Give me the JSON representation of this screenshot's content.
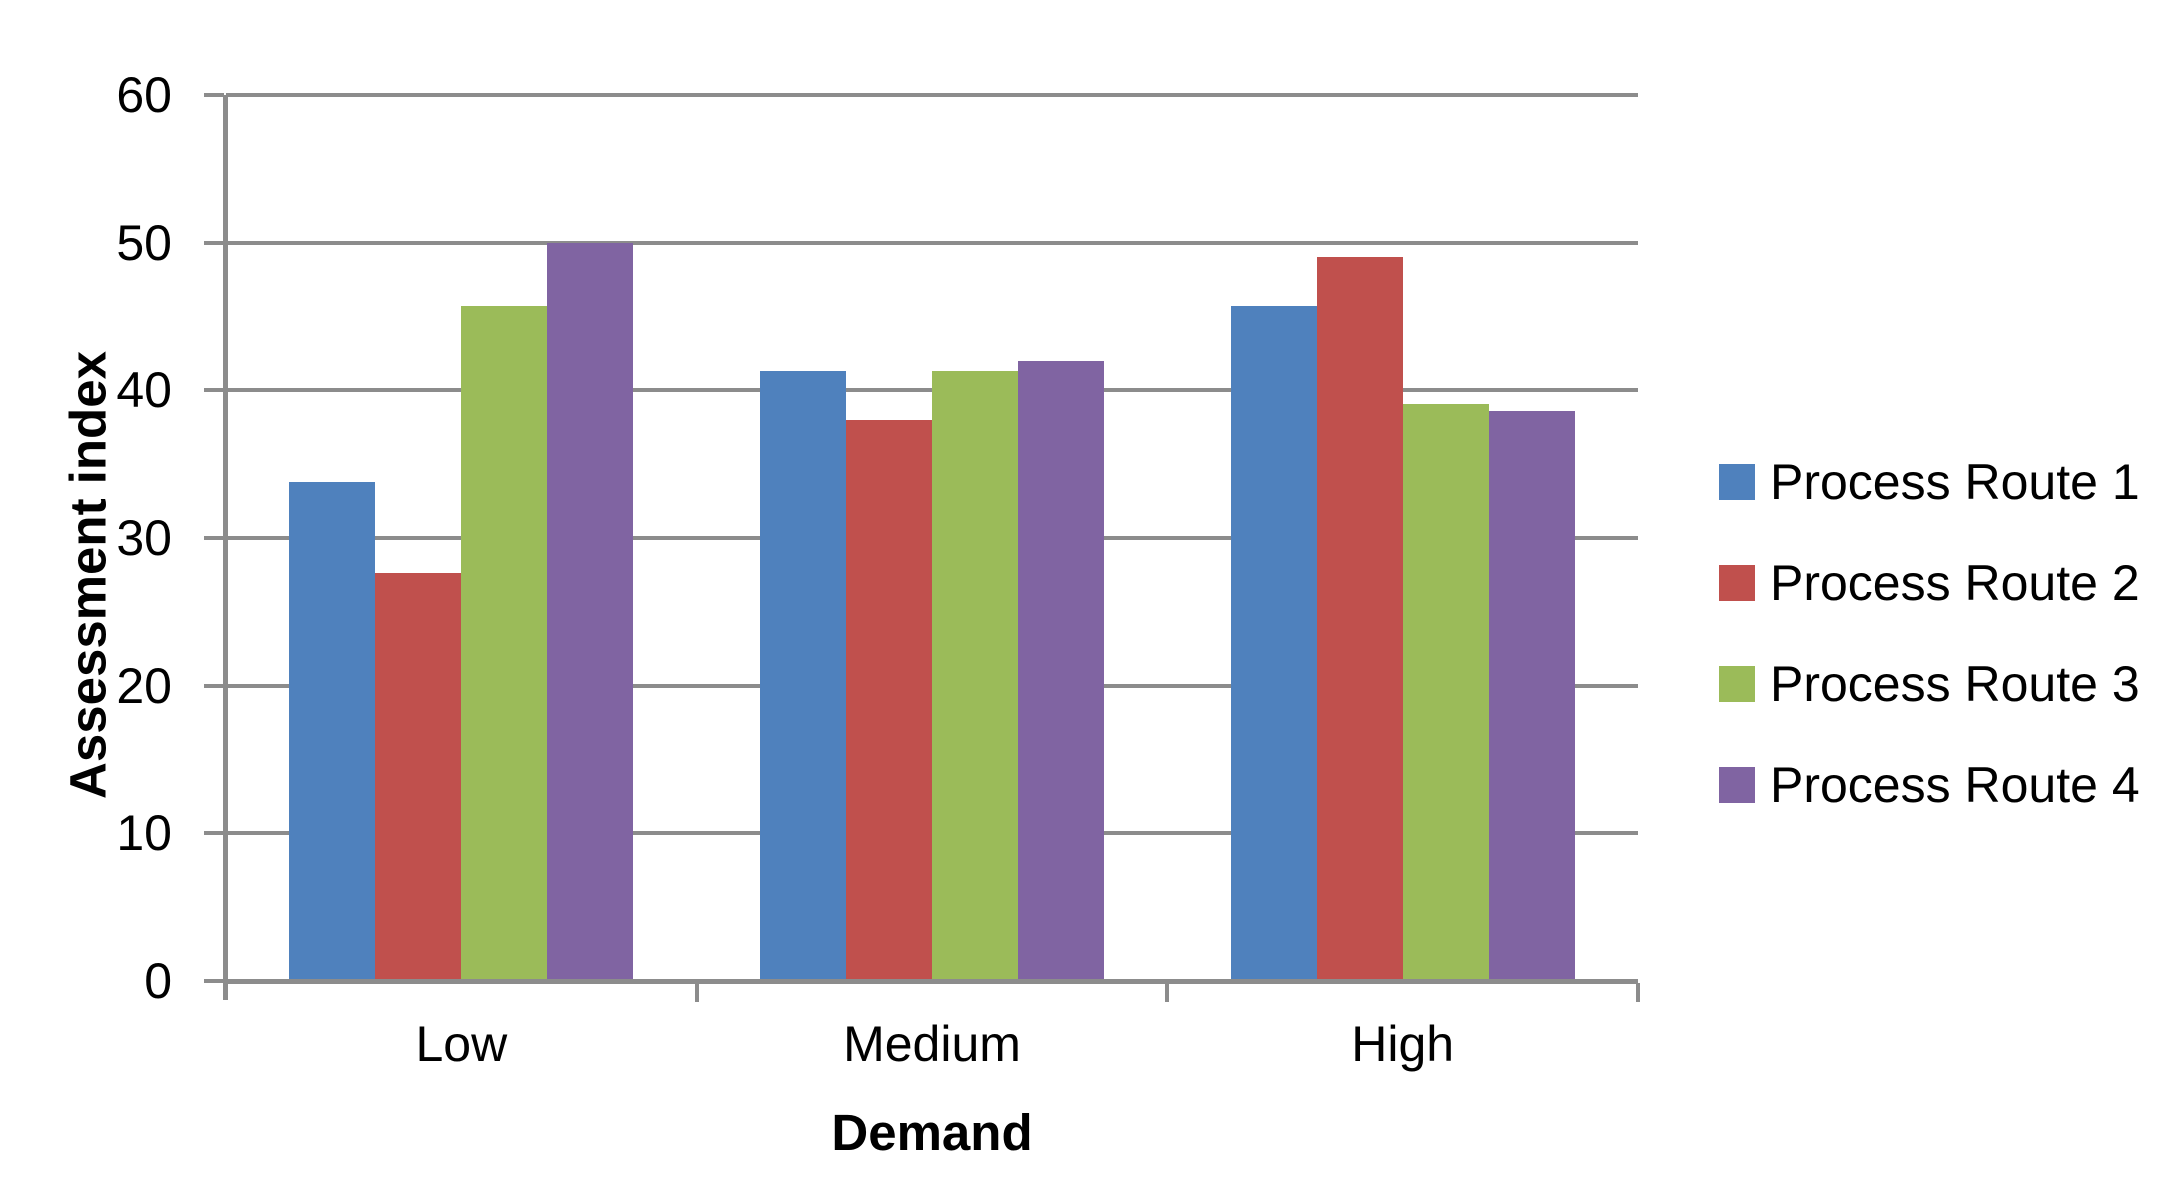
{
  "chart_data": {
    "type": "bar",
    "title": "",
    "xlabel": "Demand",
    "ylabel": "Assessment index",
    "categories": [
      "Low",
      "Medium",
      "High"
    ],
    "series": [
      {
        "name": "Process Route 1",
        "color": "#4F81BD",
        "values": [
          33.8,
          41.3,
          45.7
        ]
      },
      {
        "name": "Process Route 2",
        "color": "#C0504D",
        "values": [
          27.6,
          38.0,
          49.0
        ]
      },
      {
        "name": "Process Route 3",
        "color": "#9BBB59",
        "values": [
          45.7,
          41.3,
          39.1
        ]
      },
      {
        "name": "Process Route 4",
        "color": "#8064A2",
        "values": [
          50.0,
          42.0,
          38.6
        ]
      }
    ],
    "ylim": [
      0,
      60
    ],
    "yticks": [
      0,
      10,
      20,
      30,
      40,
      50,
      60
    ],
    "grid": true,
    "legend_position": "right",
    "colors": {
      "gridline": "#8C8C8C",
      "axis": "#8C8C8C",
      "text": "#000000",
      "background": "#FFFFFF"
    }
  }
}
